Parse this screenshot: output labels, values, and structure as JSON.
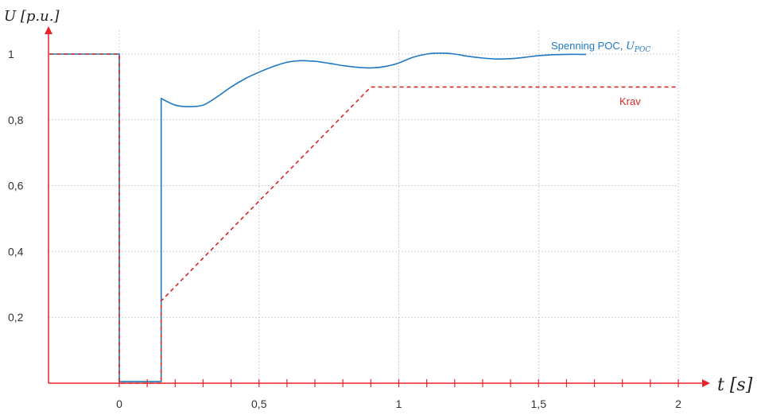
{
  "chart_data": {
    "type": "line",
    "xlabel": "t [s]",
    "ylabel": "U [p.u.]",
    "xlim": [
      -0.25,
      2.1
    ],
    "ylim": [
      0,
      1.05
    ],
    "x_ticks": [
      0,
      0.5,
      1,
      1.5,
      2
    ],
    "x_tick_labels": [
      "0",
      "0,5",
      "1",
      "1,5",
      "2"
    ],
    "y_ticks": [
      0.2,
      0.4,
      0.6,
      0.8,
      1
    ],
    "y_tick_labels": [
      "0,2",
      "0,4",
      "0,6",
      "0,8",
      "1"
    ],
    "x_minor_step": 0.1,
    "grid": true,
    "series": [
      {
        "name": "Spenning POC, U_POC",
        "color": "#1f78c1",
        "style": "solid",
        "x": [
          -0.25,
          0,
          0,
          0.15,
          0.15,
          0.2,
          0.25,
          0.3,
          0.35,
          0.4,
          0.45,
          0.5,
          0.55,
          0.6,
          0.65,
          0.7,
          0.75,
          0.8,
          0.85,
          0.9,
          0.95,
          1.0,
          1.05,
          1.1,
          1.15,
          1.2,
          1.25,
          1.3,
          1.35,
          1.4,
          1.45,
          1.5,
          1.55,
          1.6,
          1.65,
          1.67
        ],
        "y": [
          1,
          1,
          0.005,
          0.005,
          0.865,
          0.845,
          0.84,
          0.845,
          0.87,
          0.9,
          0.925,
          0.945,
          0.962,
          0.975,
          0.98,
          0.978,
          0.972,
          0.965,
          0.96,
          0.958,
          0.962,
          0.973,
          0.99,
          1.0,
          1.003,
          1.0,
          0.993,
          0.988,
          0.985,
          0.986,
          0.99,
          0.995,
          0.998,
          0.999,
          0.999,
          0.999
        ]
      },
      {
        "name": "Krav",
        "color": "#d62728",
        "style": "dashed",
        "x": [
          -0.25,
          0,
          0,
          0.15,
          0.15,
          0.9,
          2.0
        ],
        "y": [
          1,
          1,
          0,
          0,
          0.25,
          0.9,
          0.9
        ]
      }
    ]
  }
}
